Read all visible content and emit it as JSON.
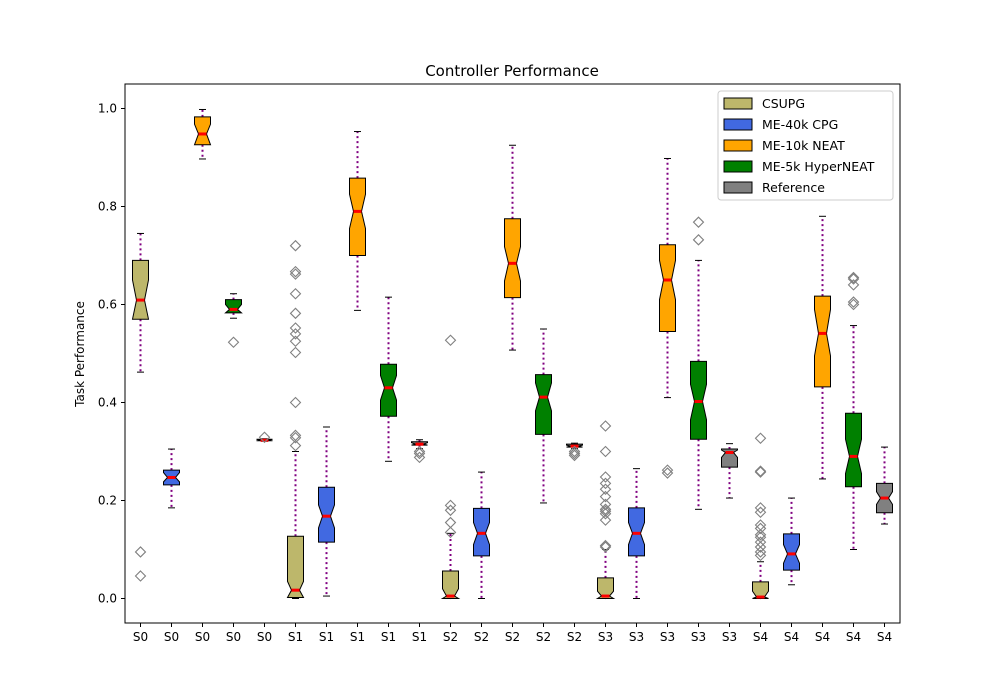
{
  "chart_data": {
    "type": "boxplot",
    "title": "Controller Performance",
    "xlabel": "",
    "ylabel": "Task Performance",
    "ylim": [
      -0.05,
      1.05
    ],
    "yticks": [
      "0.0",
      "0.2",
      "0.4",
      "0.6",
      "0.8",
      "1.0"
    ],
    "ytick_values": [
      0.0,
      0.2,
      0.4,
      0.6,
      0.8,
      1.0
    ],
    "grid": false,
    "legend_position": "top-right",
    "notched": true,
    "median_color": "#ff0000",
    "whisker_color": "#800080",
    "flier_color": "#808080",
    "series": [
      {
        "name": "CSUPG",
        "color": "#bdb76b"
      },
      {
        "name": "ME-40k CPG",
        "color": "#4169e1"
      },
      {
        "name": "ME-10k NEAT",
        "color": "#ffa500"
      },
      {
        "name": "ME-5k HyperNEAT",
        "color": "#008000"
      },
      {
        "name": "Reference",
        "color": "#808080"
      }
    ],
    "boxes": [
      {
        "label": "S0",
        "series": 0,
        "q1": 0.57,
        "median": 0.609,
        "q3": 0.69,
        "whislo": 0.462,
        "whishi": 0.745,
        "notch_lo": 0.57,
        "notch_hi": 0.65,
        "fliers": [
          0.095,
          0.046
        ]
      },
      {
        "label": "S0",
        "series": 1,
        "q1": 0.232,
        "median": 0.247,
        "q3": 0.262,
        "whislo": 0.185,
        "whishi": 0.305,
        "notch_lo": 0.238,
        "notch_hi": 0.257,
        "fliers": []
      },
      {
        "label": "S0",
        "series": 2,
        "q1": 0.926,
        "median": 0.948,
        "q3": 0.983,
        "whislo": 0.897,
        "whishi": 0.998,
        "notch_lo": 0.926,
        "notch_hi": 0.968,
        "fliers": []
      },
      {
        "label": "S0",
        "series": 3,
        "q1": 0.583,
        "median": 0.59,
        "q3": 0.61,
        "whislo": 0.572,
        "whishi": 0.622,
        "notch_lo": 0.583,
        "notch_hi": 0.6,
        "fliers": [
          0.523
        ]
      },
      {
        "label": "S0",
        "series": 4,
        "q1": 0.322,
        "median": 0.323,
        "q3": 0.325,
        "whislo": 0.321,
        "whishi": 0.326,
        "notch_lo": 0.322,
        "notch_hi": 0.325,
        "fliers": [
          0.329
        ]
      },
      {
        "label": "S1",
        "series": 0,
        "q1": 0.002,
        "median": 0.017,
        "q3": 0.127,
        "whislo": 0.0,
        "whishi": 0.3,
        "notch_lo": 0.002,
        "notch_hi": 0.035,
        "fliers": [
          0.72,
          0.667,
          0.662,
          0.622,
          0.582,
          0.552,
          0.54,
          0.525,
          0.502,
          0.4,
          0.333,
          0.328,
          0.312
        ]
      },
      {
        "label": "S1",
        "series": 1,
        "q1": 0.115,
        "median": 0.168,
        "q3": 0.227,
        "whislo": 0.005,
        "whishi": 0.35,
        "notch_lo": 0.144,
        "notch_hi": 0.191,
        "fliers": []
      },
      {
        "label": "S1",
        "series": 2,
        "q1": 0.7,
        "median": 0.79,
        "q3": 0.858,
        "whislo": 0.588,
        "whishi": 0.953,
        "notch_lo": 0.755,
        "notch_hi": 0.825,
        "fliers": []
      },
      {
        "label": "S1",
        "series": 3,
        "q1": 0.372,
        "median": 0.43,
        "q3": 0.478,
        "whislo": 0.28,
        "whishi": 0.615,
        "notch_lo": 0.405,
        "notch_hi": 0.455,
        "fliers": []
      },
      {
        "label": "S1",
        "series": 4,
        "q1": 0.313,
        "median": 0.315,
        "q3": 0.32,
        "whislo": 0.306,
        "whishi": 0.324,
        "notch_lo": 0.313,
        "notch_hi": 0.318,
        "fliers": [
          0.3,
          0.296,
          0.288
        ]
      },
      {
        "label": "S2",
        "series": 0,
        "q1": 0.0,
        "median": 0.005,
        "q3": 0.056,
        "whislo": 0.0,
        "whishi": 0.133,
        "notch_lo": 0.0,
        "notch_hi": 0.02,
        "fliers": [
          0.527,
          0.19,
          0.18,
          0.155,
          0.135
        ]
      },
      {
        "label": "S2",
        "series": 1,
        "q1": 0.087,
        "median": 0.133,
        "q3": 0.184,
        "whislo": 0.0,
        "whishi": 0.258,
        "notch_lo": 0.11,
        "notch_hi": 0.155,
        "fliers": []
      },
      {
        "label": "S2",
        "series": 2,
        "q1": 0.614,
        "median": 0.684,
        "q3": 0.775,
        "whislo": 0.507,
        "whishi": 0.925,
        "notch_lo": 0.648,
        "notch_hi": 0.718,
        "fliers": []
      },
      {
        "label": "S2",
        "series": 3,
        "q1": 0.335,
        "median": 0.411,
        "q3": 0.457,
        "whislo": 0.195,
        "whishi": 0.55,
        "notch_lo": 0.383,
        "notch_hi": 0.44,
        "fliers": []
      },
      {
        "label": "S2",
        "series": 4,
        "q1": 0.309,
        "median": 0.311,
        "q3": 0.315,
        "whislo": 0.306,
        "whishi": 0.317,
        "notch_lo": 0.309,
        "notch_hi": 0.313,
        "fliers": [
          0.3,
          0.296,
          0.292
        ]
      },
      {
        "label": "S3",
        "series": 0,
        "q1": 0.0,
        "median": 0.005,
        "q3": 0.042,
        "whislo": 0.0,
        "whishi": 0.1,
        "notch_lo": 0.0,
        "notch_hi": 0.015,
        "fliers": [
          0.352,
          0.3,
          0.248,
          0.235,
          0.223,
          0.208,
          0.192,
          0.182,
          0.178,
          0.173,
          0.16,
          0.108,
          0.105
        ]
      },
      {
        "label": "S3",
        "series": 1,
        "q1": 0.087,
        "median": 0.133,
        "q3": 0.185,
        "whislo": 0.0,
        "whishi": 0.265,
        "notch_lo": 0.11,
        "notch_hi": 0.155,
        "fliers": []
      },
      {
        "label": "S3",
        "series": 2,
        "q1": 0.545,
        "median": 0.65,
        "q3": 0.722,
        "whislo": 0.41,
        "whishi": 0.898,
        "notch_lo": 0.61,
        "notch_hi": 0.69,
        "fliers": [
          0.262,
          0.256
        ]
      },
      {
        "label": "S3",
        "series": 3,
        "q1": 0.325,
        "median": 0.402,
        "q3": 0.484,
        "whislo": 0.182,
        "whishi": 0.69,
        "notch_lo": 0.365,
        "notch_hi": 0.437,
        "fliers": [
          0.768,
          0.732
        ]
      },
      {
        "label": "S3",
        "series": 4,
        "q1": 0.268,
        "median": 0.298,
        "q3": 0.305,
        "whislo": 0.205,
        "whishi": 0.316,
        "notch_lo": 0.288,
        "notch_hi": 0.303,
        "fliers": []
      },
      {
        "label": "S4",
        "series": 0,
        "q1": 0.0,
        "median": 0.003,
        "q3": 0.034,
        "whislo": 0.0,
        "whishi": 0.075,
        "notch_lo": 0.0,
        "notch_hi": 0.015,
        "fliers": [
          0.327,
          0.26,
          0.258,
          0.185,
          0.176,
          0.15,
          0.143,
          0.13,
          0.125,
          0.115,
          0.105,
          0.095,
          0.088
        ]
      },
      {
        "label": "S4",
        "series": 1,
        "q1": 0.058,
        "median": 0.091,
        "q3": 0.132,
        "whislo": 0.028,
        "whishi": 0.205,
        "notch_lo": 0.072,
        "notch_hi": 0.11,
        "fliers": []
      },
      {
        "label": "S4",
        "series": 2,
        "q1": 0.432,
        "median": 0.541,
        "q3": 0.617,
        "whislo": 0.244,
        "whishi": 0.78,
        "notch_lo": 0.495,
        "notch_hi": 0.59,
        "fliers": []
      },
      {
        "label": "S4",
        "series": 3,
        "q1": 0.228,
        "median": 0.29,
        "q3": 0.378,
        "whislo": 0.1,
        "whishi": 0.557,
        "notch_lo": 0.255,
        "notch_hi": 0.325,
        "fliers": [
          0.655,
          0.652,
          0.64,
          0.605,
          0.6
        ]
      },
      {
        "label": "S4",
        "series": 4,
        "q1": 0.175,
        "median": 0.205,
        "q3": 0.235,
        "whislo": 0.152,
        "whishi": 0.309,
        "notch_lo": 0.192,
        "notch_hi": 0.218,
        "fliers": []
      }
    ]
  }
}
